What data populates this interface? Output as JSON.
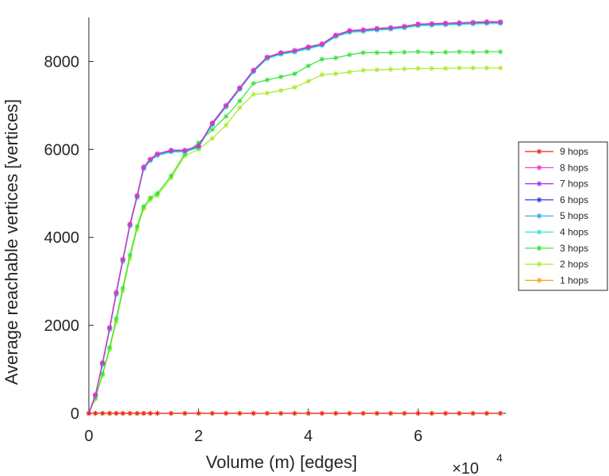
{
  "chart_data": {
    "type": "line",
    "title": "",
    "xlabel": "Volume (m) [edges]",
    "ylabel": "Average reachable vertices [vertices]",
    "x_exponent_label": "×10",
    "x_exponent_power": "4",
    "x_multiplier": 10000,
    "xlim": [
      0,
      7.6
    ],
    "ylim": [
      0,
      9000
    ],
    "xticks": [
      0,
      2,
      4,
      6
    ],
    "xtick_labels": [
      "0",
      "2",
      "4",
      "6"
    ],
    "yticks": [
      0,
      2000,
      4000,
      6000,
      8000
    ],
    "ytick_labels": [
      "0",
      "2000",
      "4000",
      "6000",
      "8000"
    ],
    "grid": false,
    "legend_position": "right",
    "x": [
      0,
      0.12,
      0.25,
      0.38,
      0.5,
      0.62,
      0.75,
      0.88,
      1.0,
      1.12,
      1.25,
      1.5,
      1.75,
      2.0,
      2.25,
      2.5,
      2.75,
      3.0,
      3.25,
      3.5,
      3.75,
      4.0,
      4.25,
      4.5,
      4.75,
      5.0,
      5.25,
      5.5,
      5.75,
      6.0,
      6.25,
      6.5,
      6.75,
      7.0,
      7.25,
      7.5
    ],
    "series": [
      {
        "name": "9 hops",
        "color": "#e8221b",
        "values": [
          0,
          0,
          0,
          0,
          0,
          0,
          0,
          0,
          0,
          0,
          0,
          0,
          0,
          0,
          0,
          0,
          0,
          0,
          0,
          0,
          0,
          0,
          0,
          0,
          0,
          0,
          0,
          0,
          0,
          0,
          0,
          0,
          0,
          0,
          0,
          0
        ]
      },
      {
        "name": "8 hops",
        "color": "#ee2fc0",
        "values": [
          0,
          420,
          1150,
          1950,
          2750,
          3500,
          4300,
          4950,
          5600,
          5780,
          5900,
          5980,
          5980,
          6080,
          6600,
          7000,
          7400,
          7800,
          8100,
          8200,
          8250,
          8330,
          8400,
          8600,
          8700,
          8720,
          8750,
          8770,
          8800,
          8850,
          8860,
          8870,
          8880,
          8890,
          8900,
          8900
        ]
      },
      {
        "name": "7 hops",
        "color": "#9a2ef0",
        "values": [
          0,
          420,
          1150,
          1950,
          2750,
          3500,
          4300,
          4950,
          5600,
          5780,
          5900,
          5980,
          5980,
          6080,
          6600,
          7000,
          7400,
          7800,
          8100,
          8200,
          8250,
          8330,
          8400,
          8600,
          8700,
          8720,
          8750,
          8770,
          8800,
          8850,
          8860,
          8870,
          8880,
          8890,
          8900,
          8900
        ]
      },
      {
        "name": "6 hops",
        "color": "#2f37d6",
        "values": [
          0,
          420,
          1150,
          1950,
          2750,
          3500,
          4300,
          4950,
          5600,
          5780,
          5900,
          5980,
          5980,
          6080,
          6600,
          7000,
          7400,
          7800,
          8100,
          8200,
          8250,
          8330,
          8400,
          8600,
          8700,
          8720,
          8750,
          8770,
          8800,
          8850,
          8860,
          8870,
          8880,
          8890,
          8900,
          8900
        ]
      },
      {
        "name": "5 hops",
        "color": "#2aa6e6",
        "values": [
          0,
          410,
          1130,
          1930,
          2720,
          3480,
          4280,
          4930,
          5580,
          5760,
          5880,
          5960,
          5960,
          6060,
          6580,
          6980,
          7380,
          7780,
          8080,
          8180,
          8230,
          8310,
          8380,
          8580,
          8680,
          8700,
          8730,
          8750,
          8780,
          8830,
          8840,
          8850,
          8860,
          8870,
          8880,
          8880
        ]
      },
      {
        "name": "4 hops",
        "color": "#33e1c0",
        "values": [
          0,
          400,
          1100,
          1900,
          2700,
          3450,
          4250,
          4900,
          5550,
          5740,
          5860,
          5940,
          5940,
          6040,
          6560,
          6960,
          7360,
          7760,
          8060,
          8160,
          8210,
          8290,
          8360,
          8560,
          8660,
          8680,
          8710,
          8730,
          8760,
          8810,
          8820,
          8830,
          8840,
          8850,
          8860,
          8860
        ]
      },
      {
        "name": "3 hops",
        "color": "#33e23a",
        "values": [
          0,
          350,
          900,
          1500,
          2150,
          2850,
          3600,
          4250,
          4700,
          4900,
          5000,
          5400,
          5900,
          6150,
          6450,
          6750,
          7100,
          7500,
          7580,
          7650,
          7720,
          7900,
          8050,
          8080,
          8150,
          8200,
          8200,
          8200,
          8210,
          8220,
          8200,
          8210,
          8220,
          8210,
          8220,
          8220
        ]
      },
      {
        "name": "2 hops",
        "color": "#aaea2a",
        "values": [
          0,
          330,
          860,
          1450,
          2080,
          2780,
          3520,
          4180,
          4650,
          4850,
          4950,
          5350,
          5850,
          6000,
          6250,
          6550,
          6950,
          7250,
          7280,
          7340,
          7410,
          7550,
          7700,
          7720,
          7760,
          7800,
          7810,
          7820,
          7830,
          7840,
          7840,
          7840,
          7850,
          7850,
          7850,
          7850
        ]
      },
      {
        "name": "1 hops",
        "color": "#f6a11b",
        "values": [
          0,
          0,
          0,
          0,
          0,
          0,
          0,
          0,
          0,
          0,
          0,
          0,
          0,
          0,
          0,
          0,
          0,
          0,
          0,
          0,
          0,
          0,
          0,
          0,
          0,
          0,
          0,
          0,
          0,
          0,
          0,
          0,
          0,
          0,
          0,
          0
        ]
      }
    ]
  }
}
